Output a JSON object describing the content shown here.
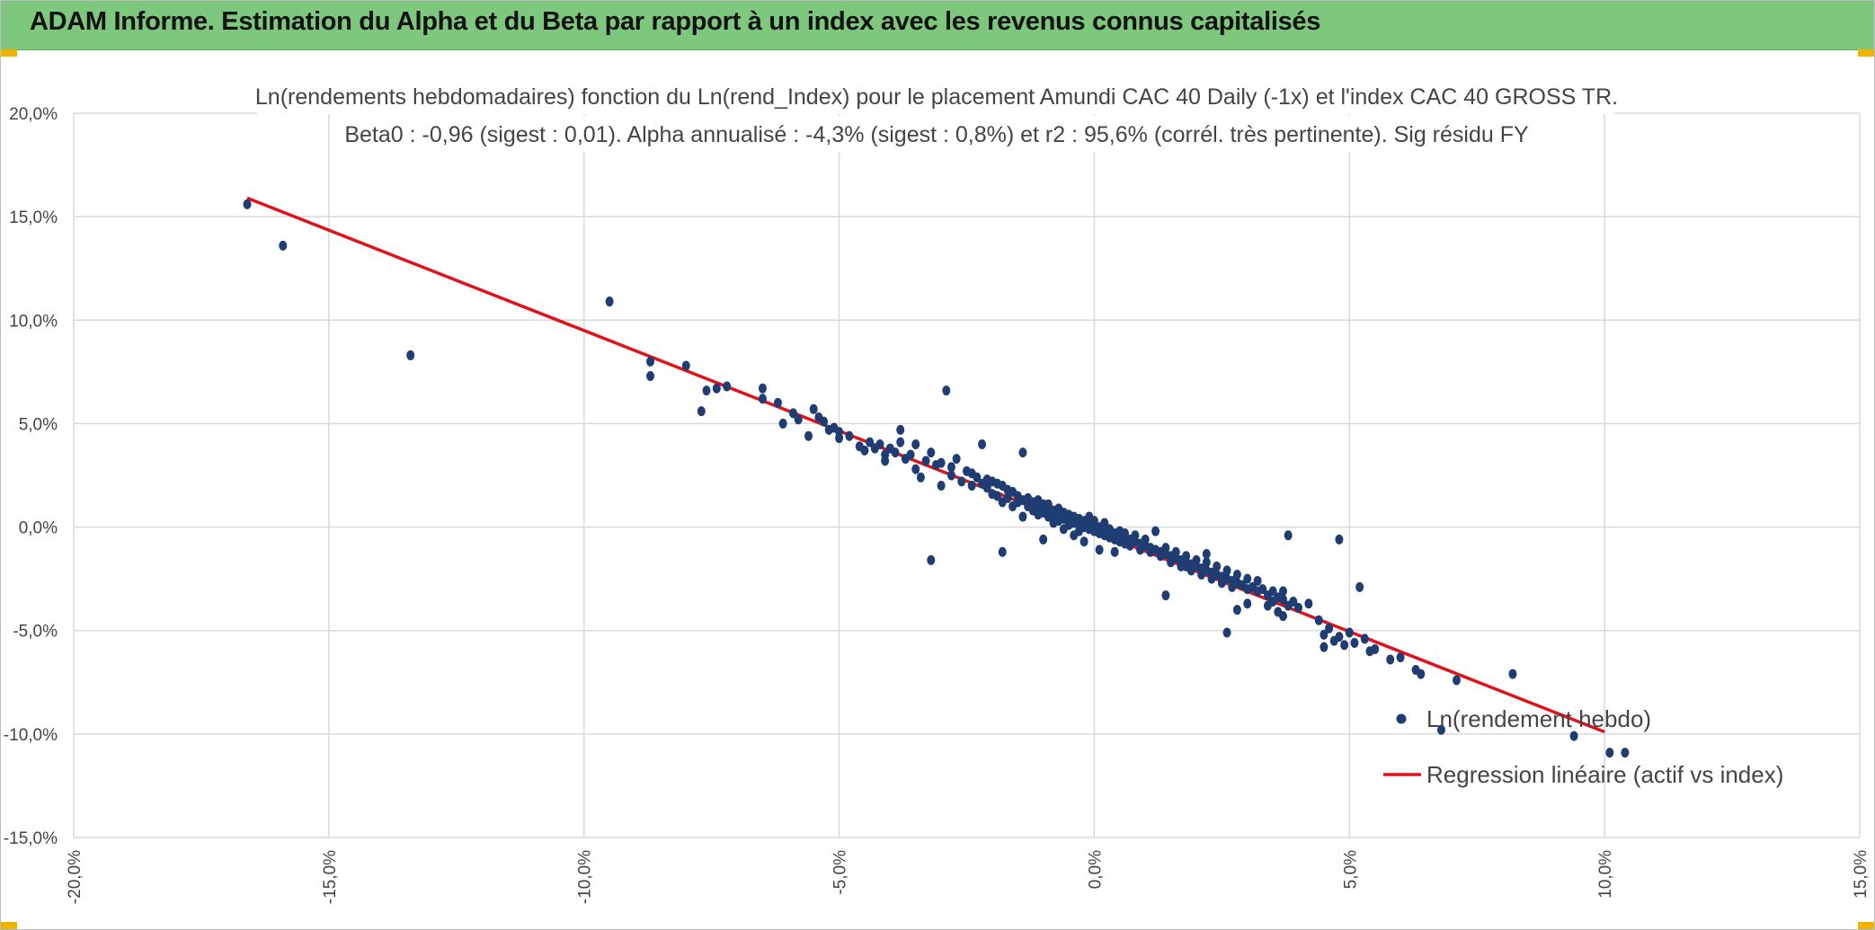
{
  "header": {
    "title": "ADAM Informe. Estimation du Alpha et du Beta par rapport à un index avec les revenus connus capitalisés"
  },
  "chart_data": {
    "type": "scatter",
    "title_line1": "Ln(rendements hebdomadaires) fonction du Ln(rend_Index) pour le placement Amundi CAC 40 Daily (-1x) et l'index CAC 40 GROSS TR.",
    "title_line2": "Beta0 : -0,96 (sigest : 0,01). Alpha annualisé : -4,3% (sigest : 0,8%) et r2 : 95,6% (corrél. très pertinente). Sig résidu FY",
    "xlim": [
      -0.2,
      0.15
    ],
    "ylim": [
      -0.15,
      0.2
    ],
    "x_ticks": [
      -0.2,
      -0.15,
      -0.1,
      -0.05,
      0.0,
      0.05,
      0.1,
      0.15
    ],
    "x_tick_labels": [
      "-20,0%",
      "-15,0%",
      "-10,0%",
      "-5,0%",
      "0,0%",
      "5,0%",
      "10,0%",
      "15,0%"
    ],
    "y_ticks": [
      0.2,
      0.15,
      0.1,
      0.05,
      0.0,
      -0.05,
      -0.1,
      -0.15
    ],
    "y_tick_labels": [
      "20,0%",
      "15,0%",
      "10,0%",
      "5,0%",
      "0,0%",
      "-5,0%",
      "-10,0%",
      "-15,0%"
    ],
    "grid": true,
    "legend_position": "bottom-right",
    "colors": {
      "points": "#1f3d73",
      "regression": "#e0121b",
      "grid": "#d9d9d9",
      "header": "#7dc87d"
    },
    "regression": {
      "name": "Regression linéaire (actif vs index)",
      "x": [
        -0.166,
        0.1
      ],
      "y": [
        0.159,
        -0.099
      ]
    },
    "series": [
      {
        "name": "Ln(rendement hebdo)",
        "points": [
          [
            -0.166,
            0.156
          ],
          [
            -0.159,
            0.136
          ],
          [
            -0.134,
            0.083
          ],
          [
            -0.095,
            0.109
          ],
          [
            -0.087,
            0.08
          ],
          [
            -0.087,
            0.073
          ],
          [
            -0.08,
            0.078
          ],
          [
            -0.077,
            0.056
          ],
          [
            -0.076,
            0.066
          ],
          [
            -0.074,
            0.067
          ],
          [
            -0.072,
            0.068
          ],
          [
            -0.065,
            0.067
          ],
          [
            -0.065,
            0.062
          ],
          [
            -0.062,
            0.06
          ],
          [
            -0.061,
            0.05
          ],
          [
            -0.059,
            0.055
          ],
          [
            -0.058,
            0.052
          ],
          [
            -0.056,
            0.044
          ],
          [
            -0.055,
            0.057
          ],
          [
            -0.054,
            0.053
          ],
          [
            -0.053,
            0.051
          ],
          [
            -0.052,
            0.047
          ],
          [
            -0.051,
            0.048
          ],
          [
            -0.05,
            0.046
          ],
          [
            -0.05,
            0.043
          ],
          [
            -0.048,
            0.044
          ],
          [
            -0.046,
            0.039
          ],
          [
            -0.045,
            0.037
          ],
          [
            -0.044,
            0.041
          ],
          [
            -0.043,
            0.038
          ],
          [
            -0.042,
            0.04
          ],
          [
            -0.041,
            0.035
          ],
          [
            -0.041,
            0.032
          ],
          [
            -0.04,
            0.038
          ],
          [
            -0.039,
            0.036
          ],
          [
            -0.038,
            0.047
          ],
          [
            -0.038,
            0.041
          ],
          [
            -0.037,
            0.033
          ],
          [
            -0.036,
            0.035
          ],
          [
            -0.035,
            0.028
          ],
          [
            -0.035,
            0.04
          ],
          [
            -0.034,
            0.024
          ],
          [
            -0.033,
            0.032
          ],
          [
            -0.032,
            0.036
          ],
          [
            -0.032,
            -0.016
          ],
          [
            -0.031,
            0.03
          ],
          [
            -0.03,
            0.031
          ],
          [
            -0.03,
            0.02
          ],
          [
            -0.029,
            0.066
          ],
          [
            -0.028,
            0.029
          ],
          [
            -0.028,
            0.025
          ],
          [
            -0.027,
            0.033
          ],
          [
            -0.026,
            0.022
          ],
          [
            -0.025,
            0.027
          ],
          [
            -0.024,
            0.02
          ],
          [
            -0.024,
            0.026
          ],
          [
            -0.023,
            0.024
          ],
          [
            -0.022,
            0.021
          ],
          [
            -0.022,
            0.04
          ],
          [
            -0.021,
            0.023
          ],
          [
            -0.021,
            0.019
          ],
          [
            -0.02,
            0.016
          ],
          [
            -0.02,
            0.022
          ],
          [
            -0.019,
            0.021
          ],
          [
            -0.019,
            0.015
          ],
          [
            -0.018,
            0.02
          ],
          [
            -0.018,
            0.012
          ],
          [
            -0.018,
            -0.012
          ],
          [
            -0.017,
            0.018
          ],
          [
            -0.017,
            0.014
          ],
          [
            -0.016,
            0.017
          ],
          [
            -0.016,
            0.01
          ],
          [
            -0.015,
            0.015
          ],
          [
            -0.015,
            0.012
          ],
          [
            -0.014,
            0.036
          ],
          [
            -0.014,
            0.013
          ],
          [
            -0.014,
            0.005
          ],
          [
            -0.013,
            0.014
          ],
          [
            -0.013,
            0.01
          ],
          [
            -0.012,
            0.012
          ],
          [
            -0.012,
            0.008
          ],
          [
            -0.011,
            0.01
          ],
          [
            -0.011,
            0.013
          ],
          [
            -0.011,
            0.006
          ],
          [
            -0.01,
            0.011
          ],
          [
            -0.01,
            0.007
          ],
          [
            -0.01,
            -0.006
          ],
          [
            -0.009,
            0.009
          ],
          [
            -0.009,
            0.005
          ],
          [
            -0.009,
            0.011
          ],
          [
            -0.008,
            0.008
          ],
          [
            -0.008,
            0.004
          ],
          [
            -0.008,
            0.002
          ],
          [
            -0.007,
            0.009
          ],
          [
            -0.007,
            0.006
          ],
          [
            -0.007,
            0.003
          ],
          [
            -0.006,
            0.007
          ],
          [
            -0.006,
            0.004
          ],
          [
            -0.006,
            -0.001
          ],
          [
            -0.005,
            0.006
          ],
          [
            -0.005,
            0.003
          ],
          [
            -0.005,
            0.001
          ],
          [
            -0.004,
            0.005
          ],
          [
            -0.004,
            0.002
          ],
          [
            -0.004,
            -0.004
          ],
          [
            -0.003,
            0.004
          ],
          [
            -0.003,
            0.001
          ],
          [
            -0.003,
            -0.002
          ],
          [
            -0.002,
            0.003
          ],
          [
            -0.002,
            0.0
          ],
          [
            -0.002,
            -0.007
          ],
          [
            -0.001,
            0.002
          ],
          [
            -0.001,
            -0.001
          ],
          [
            -0.001,
            0.005
          ],
          [
            0.0,
            0.001
          ],
          [
            0.0,
            -0.002
          ],
          [
            0.0,
            0.003
          ],
          [
            0.001,
            0.0
          ],
          [
            0.001,
            -0.003
          ],
          [
            0.001,
            -0.011
          ],
          [
            0.002,
            -0.001
          ],
          [
            0.002,
            -0.004
          ],
          [
            0.002,
            0.002
          ],
          [
            0.003,
            -0.002
          ],
          [
            0.003,
            -0.005
          ],
          [
            0.003,
            -0.001
          ],
          [
            0.004,
            -0.003
          ],
          [
            0.004,
            -0.006
          ],
          [
            0.004,
            -0.012
          ],
          [
            0.005,
            -0.004
          ],
          [
            0.005,
            -0.007
          ],
          [
            0.005,
            -0.002
          ],
          [
            0.006,
            -0.005
          ],
          [
            0.006,
            -0.008
          ],
          [
            0.006,
            -0.003
          ],
          [
            0.007,
            -0.006
          ],
          [
            0.007,
            -0.009
          ],
          [
            0.008,
            -0.007
          ],
          [
            0.008,
            -0.004
          ],
          [
            0.009,
            -0.008
          ],
          [
            0.009,
            -0.011
          ],
          [
            0.01,
            -0.009
          ],
          [
            0.01,
            -0.006
          ],
          [
            0.011,
            -0.01
          ],
          [
            0.011,
            -0.012
          ],
          [
            0.012,
            -0.011
          ],
          [
            0.012,
            -0.002
          ],
          [
            0.013,
            -0.012
          ],
          [
            0.013,
            -0.014
          ],
          [
            0.014,
            -0.013
          ],
          [
            0.014,
            -0.01
          ],
          [
            0.015,
            -0.014
          ],
          [
            0.015,
            -0.017
          ],
          [
            0.016,
            -0.015
          ],
          [
            0.016,
            -0.012
          ],
          [
            0.017,
            -0.016
          ],
          [
            0.017,
            -0.019
          ],
          [
            0.018,
            -0.017
          ],
          [
            0.018,
            -0.014
          ],
          [
            0.019,
            -0.018
          ],
          [
            0.019,
            -0.021
          ],
          [
            0.02,
            -0.019
          ],
          [
            0.02,
            -0.016
          ],
          [
            0.021,
            -0.02
          ],
          [
            0.021,
            -0.023
          ],
          [
            0.022,
            -0.021
          ],
          [
            0.022,
            -0.017
          ],
          [
            0.023,
            -0.022
          ],
          [
            0.023,
            -0.025
          ],
          [
            0.024,
            -0.023
          ],
          [
            0.024,
            -0.019
          ],
          [
            0.025,
            -0.024
          ],
          [
            0.025,
            -0.027
          ],
          [
            0.026,
            -0.025
          ],
          [
            0.026,
            -0.021
          ],
          [
            0.027,
            -0.026
          ],
          [
            0.027,
            -0.029
          ],
          [
            0.028,
            -0.027
          ],
          [
            0.028,
            -0.023
          ],
          [
            0.029,
            -0.028
          ],
          [
            0.03,
            -0.03
          ],
          [
            0.03,
            -0.025
          ],
          [
            0.031,
            -0.029
          ],
          [
            0.032,
            -0.031
          ],
          [
            0.032,
            -0.026
          ],
          [
            0.033,
            -0.03
          ],
          [
            0.034,
            -0.033
          ],
          [
            0.035,
            -0.031
          ],
          [
            0.035,
            -0.036
          ],
          [
            0.036,
            -0.034
          ],
          [
            0.037,
            -0.031
          ],
          [
            0.037,
            -0.035
          ],
          [
            0.038,
            -0.004
          ],
          [
            0.038,
            -0.038
          ],
          [
            0.014,
            -0.033
          ],
          [
            0.018,
            -0.019
          ],
          [
            0.022,
            -0.013
          ],
          [
            0.028,
            -0.04
          ],
          [
            0.03,
            -0.037
          ],
          [
            0.034,
            -0.038
          ],
          [
            0.036,
            -0.041
          ],
          [
            0.037,
            -0.043
          ],
          [
            0.039,
            -0.036
          ],
          [
            0.04,
            -0.039
          ],
          [
            0.042,
            -0.037
          ],
          [
            0.044,
            -0.045
          ],
          [
            0.045,
            -0.052
          ],
          [
            0.045,
            -0.058
          ],
          [
            0.046,
            -0.049
          ],
          [
            0.047,
            -0.055
          ],
          [
            0.048,
            -0.006
          ],
          [
            0.048,
            -0.053
          ],
          [
            0.049,
            -0.057
          ],
          [
            0.05,
            -0.051
          ],
          [
            0.051,
            -0.056
          ],
          [
            0.052,
            -0.029
          ],
          [
            0.053,
            -0.054
          ],
          [
            0.054,
            -0.06
          ],
          [
            0.055,
            -0.059
          ],
          [
            0.058,
            -0.064
          ],
          [
            0.06,
            -0.063
          ],
          [
            0.063,
            -0.069
          ],
          [
            0.064,
            -0.071
          ],
          [
            0.068,
            -0.098
          ],
          [
            0.071,
            -0.074
          ],
          [
            0.082,
            -0.071
          ],
          [
            0.094,
            -0.101
          ],
          [
            0.101,
            -0.109
          ],
          [
            0.104,
            -0.109
          ],
          [
            0.026,
            -0.051
          ]
        ]
      }
    ]
  }
}
